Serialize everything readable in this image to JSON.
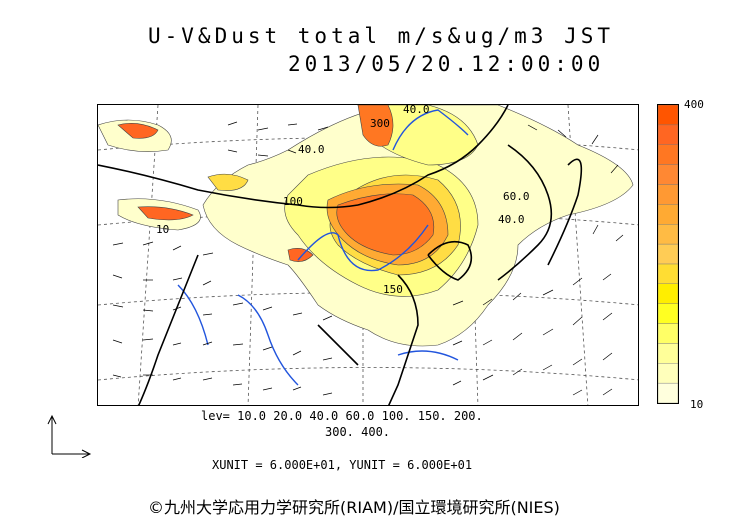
{
  "title": {
    "line1": "U-V&Dust total m/s&ug/m3 JST",
    "line2": "2013/05/20.12:00:00"
  },
  "colorbar": {
    "max_label": "400",
    "min_label": "10",
    "colors": [
      "#ffffdd",
      "#ffffbb",
      "#ffff99",
      "#ffff66",
      "#ffff22",
      "#ffee00",
      "#ffdd33",
      "#ffcc55",
      "#ffbb44",
      "#ffaa33",
      "#ff9933",
      "#ff8833",
      "#ff7722",
      "#ff6622",
      "#ff5500"
    ]
  },
  "levels": {
    "line1": "lev= 10.0 20.0 40.0 60.0 100. 150. 200.",
    "line2": "300. 400."
  },
  "units": "XUNIT = 6.000E+01, YUNIT = 6.000E+01",
  "contour_labels": [
    "40.0",
    "40.0",
    "100",
    "150",
    "60.0",
    "10",
    "300",
    "40.0"
  ],
  "credit": "©九州大学応用力学研究所(RIAM)/国立環境研究所(NIES)",
  "icons": {
    "reference_vector": "reference-vector-arrow-icon"
  }
}
